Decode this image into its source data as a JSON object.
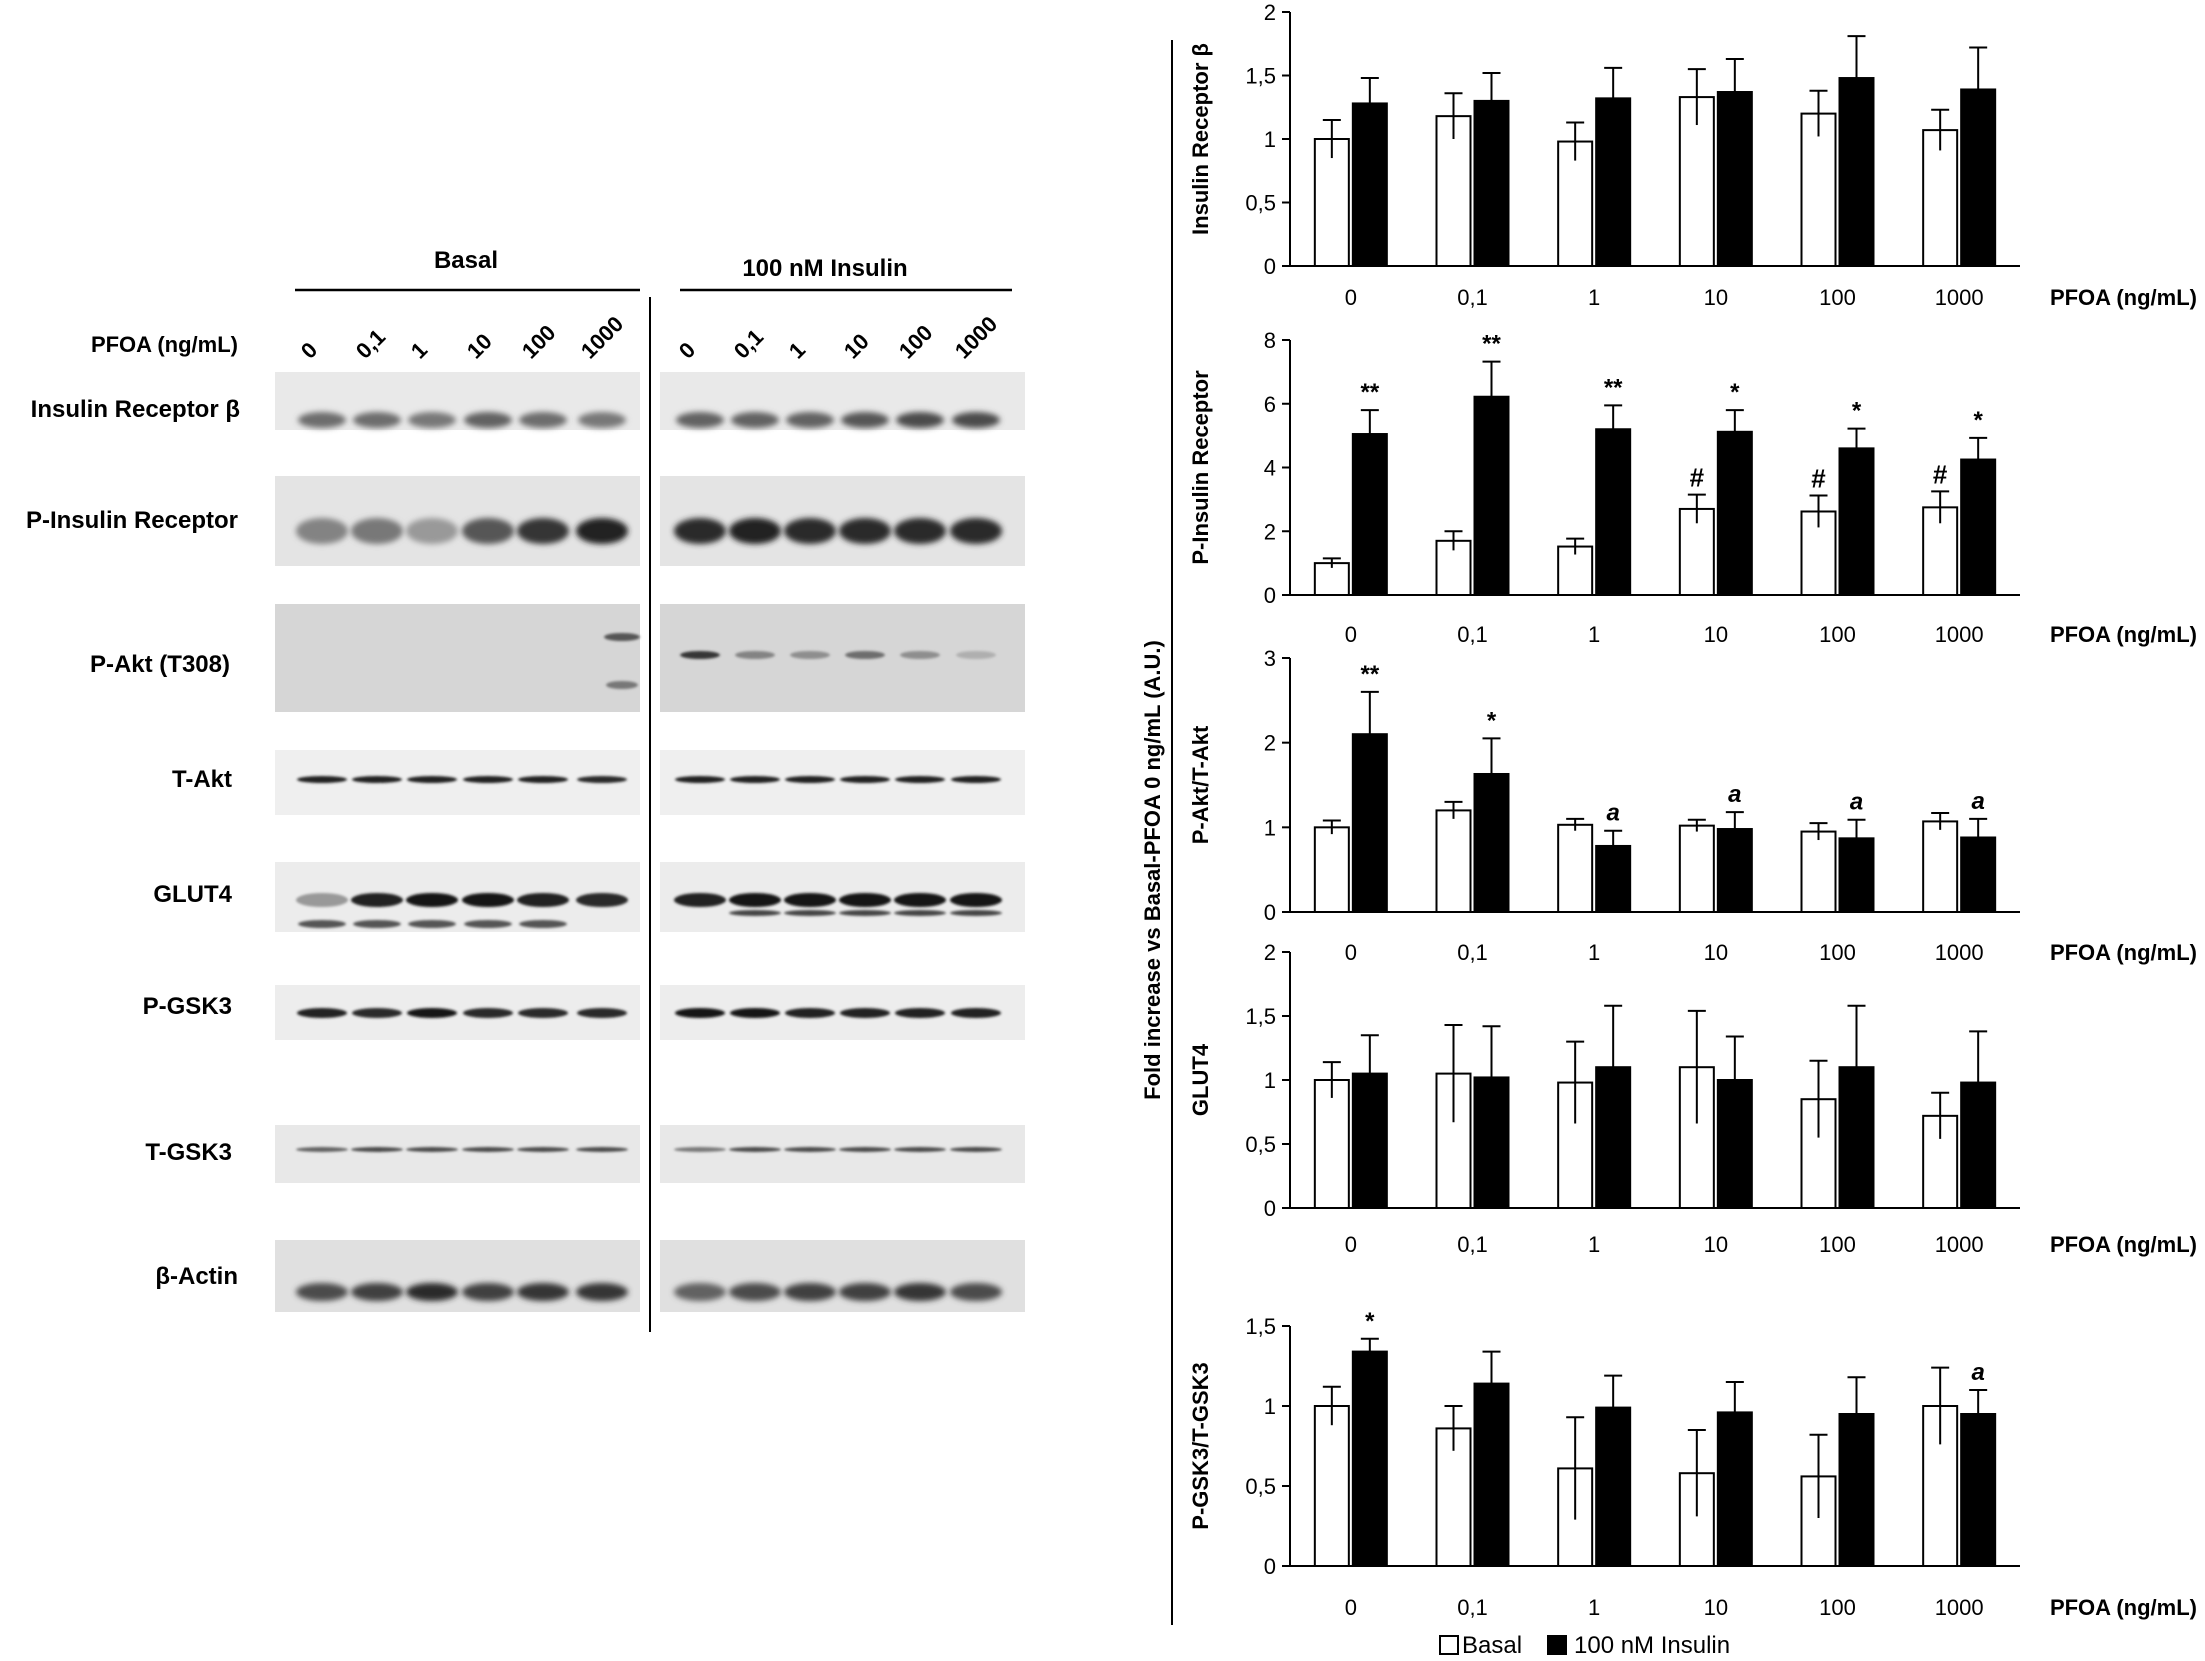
{
  "blot": {
    "group_basal": "Basal",
    "group_insulin": "100 nM Insulin",
    "pfoa_label": "PFOA (ng/mL)",
    "concentrations": [
      "0",
      "0,1",
      "1",
      "10",
      "100",
      "1000"
    ],
    "rows": [
      "Insulin  Receptor β",
      "P-Insulin  Receptor",
      "P-Akt (T308)",
      "T-Akt",
      "GLUT4",
      "P-GSK3",
      "T-GSK3",
      "β-Actin"
    ]
  },
  "figure": {
    "shared_ylabel": "Fold increase vs Basal-PFOA 0  ng/mL (A.U.)",
    "legend": {
      "basal": "Basal",
      "insulin": "100 nM Insulin"
    },
    "basal_color": "#ffffff",
    "insulin_color": "#000000"
  },
  "chart_data": [
    {
      "type": "bar",
      "ylabel": "Insulin  Receptor β",
      "xlabel": "PFOA (ng/mL)",
      "categories": [
        "0",
        "0,1",
        "1",
        "10",
        "100",
        "1000"
      ],
      "ylim": [
        0,
        2
      ],
      "yticks": [
        "0",
        "0,5",
        "1",
        "1,5",
        "2"
      ],
      "series": [
        {
          "name": "Basal",
          "values": [
            1.0,
            1.18,
            0.98,
            1.33,
            1.2,
            1.07
          ],
          "errors": [
            0.15,
            0.18,
            0.15,
            0.22,
            0.18,
            0.16
          ],
          "annotations": [
            "",
            "",
            "",
            "",
            "",
            ""
          ]
        },
        {
          "name": "100 nM Insulin",
          "values": [
            1.28,
            1.3,
            1.32,
            1.37,
            1.48,
            1.39
          ],
          "errors": [
            0.2,
            0.22,
            0.24,
            0.26,
            0.33,
            0.33
          ],
          "annotations": [
            "",
            "",
            "",
            "",
            "",
            ""
          ]
        }
      ]
    },
    {
      "type": "bar",
      "ylabel": "P-Insulin  Receptor",
      "xlabel": "PFOA (ng/mL)",
      "categories": [
        "0",
        "0,1",
        "1",
        "10",
        "100",
        "1000"
      ],
      "ylim": [
        0,
        8
      ],
      "yticks": [
        "0",
        "2",
        "4",
        "6",
        "8"
      ],
      "series": [
        {
          "name": "Basal",
          "values": [
            1.0,
            1.7,
            1.52,
            2.7,
            2.62,
            2.75
          ],
          "errors": [
            0.15,
            0.3,
            0.25,
            0.45,
            0.5,
            0.5
          ],
          "annotations": [
            "",
            "",
            "",
            "#",
            "#",
            "#"
          ]
        },
        {
          "name": "100 nM Insulin",
          "values": [
            5.05,
            6.22,
            5.2,
            5.12,
            4.6,
            4.25
          ],
          "errors": [
            0.75,
            1.1,
            0.75,
            0.68,
            0.62,
            0.68
          ],
          "annotations": [
            "**",
            "**",
            "**",
            "*",
            "*",
            "*"
          ]
        }
      ]
    },
    {
      "type": "bar",
      "ylabel": "P-Akt/T-Akt",
      "xlabel": "PFOA (ng/mL)",
      "categories": [
        "0",
        "0,1",
        "1",
        "10",
        "100",
        "1000"
      ],
      "ylim": [
        0,
        3
      ],
      "yticks": [
        "0",
        "1",
        "2",
        "3"
      ],
      "series": [
        {
          "name": "Basal",
          "values": [
            1.0,
            1.2,
            1.03,
            1.02,
            0.95,
            1.07
          ],
          "errors": [
            0.08,
            0.1,
            0.07,
            0.07,
            0.1,
            0.1
          ],
          "annotations": [
            "",
            "",
            "",
            "",
            "",
            ""
          ]
        },
        {
          "name": "100 nM Insulin",
          "values": [
            2.1,
            1.63,
            0.78,
            0.98,
            0.87,
            0.88
          ],
          "errors": [
            0.5,
            0.42,
            0.18,
            0.2,
            0.22,
            0.22
          ],
          "annotations": [
            "**",
            "*",
            "a",
            "a",
            "a",
            "a"
          ]
        }
      ]
    },
    {
      "type": "bar",
      "ylabel": "GLUT4",
      "xlabel": "PFOA (ng/mL)",
      "categories": [
        "0",
        "0,1",
        "1",
        "10",
        "100",
        "1000"
      ],
      "ylim": [
        0,
        2
      ],
      "yticks": [
        "0",
        "0,5",
        "1",
        "1,5",
        "2"
      ],
      "series": [
        {
          "name": "Basal",
          "values": [
            1.0,
            1.05,
            0.98,
            1.1,
            0.85,
            0.72
          ],
          "errors": [
            0.14,
            0.38,
            0.32,
            0.44,
            0.3,
            0.18
          ],
          "annotations": [
            "",
            "",
            "",
            "",
            "",
            ""
          ]
        },
        {
          "name": "100 nM Insulin",
          "values": [
            1.05,
            1.02,
            1.1,
            1.0,
            1.1,
            0.98
          ],
          "errors": [
            0.3,
            0.4,
            0.48,
            0.34,
            0.48,
            0.4
          ],
          "annotations": [
            "",
            "",
            "",
            "",
            "",
            ""
          ]
        }
      ]
    },
    {
      "type": "bar",
      "ylabel": "P-GSK3/T-GSK3",
      "xlabel": "PFOA (ng/mL)",
      "categories": [
        "0",
        "0,1",
        "1",
        "10",
        "100",
        "1000"
      ],
      "ylim": [
        0,
        1.5
      ],
      "yticks": [
        "0",
        "0,5",
        "1",
        "1,5"
      ],
      "series": [
        {
          "name": "Basal",
          "values": [
            1.0,
            0.86,
            0.61,
            0.58,
            0.56,
            1.0
          ],
          "errors": [
            0.12,
            0.14,
            0.32,
            0.27,
            0.26,
            0.24
          ],
          "annotations": [
            "",
            "",
            "",
            "",
            "",
            ""
          ]
        },
        {
          "name": "100 nM Insulin",
          "values": [
            1.34,
            1.14,
            0.99,
            0.96,
            0.95,
            0.95
          ],
          "errors": [
            0.08,
            0.2,
            0.2,
            0.19,
            0.23,
            0.15
          ],
          "annotations": [
            "*",
            "",
            "",
            "",
            "",
            "a"
          ]
        }
      ]
    }
  ]
}
